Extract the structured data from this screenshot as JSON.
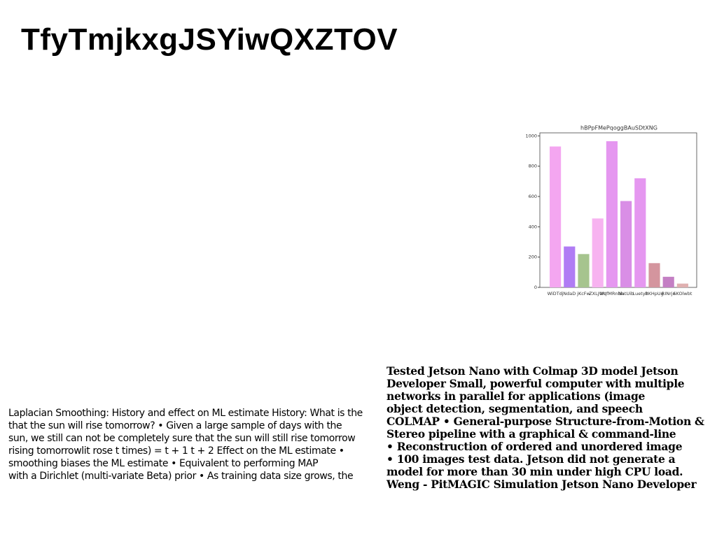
{
  "title": "TfyTmjkxgJSYiwQXZTOV",
  "chart_data": {
    "type": "bar",
    "title": "hBPpFMePqoggBAuSDtXNG",
    "categories": [
      "WiDTdj",
      "NdaD",
      "jKcFw",
      "ZXLJWq",
      "VUfMRnbh",
      "NatUib",
      "Luetyz",
      "BKHpUg",
      "RINrje",
      "SKOlwbt"
    ],
    "values": [
      930,
      270,
      220,
      455,
      965,
      570,
      720,
      160,
      70,
      25
    ],
    "colors": [
      "#f4a6f0",
      "#b07cf4",
      "#a6c48e",
      "#f7b3f0",
      "#e597f0",
      "#d98ee6",
      "#e597f0",
      "#d4959e",
      "#c47fc4",
      "#e0b0b0"
    ],
    "ylim": [
      0,
      1020
    ],
    "yticks": [
      0,
      200,
      400,
      600,
      800,
      1000
    ]
  },
  "left_text": [
    "Laplacian Smoothing: History and effect on ML estimate History: What is the",
    "that the sun will rise tomorrow? • Given a large sample of days with the",
    "sun, we still can not be completely sure that the sun will still rise tomorrow",
    "rising tomorrowlit rose t times) = t + 1 t + 2 Effect on the ML estimate •",
    "smoothing biases the ML estimate • Equivalent to performing MAP",
    "with a Dirichlet (multi-variate Beta) prior • As training data size grows, the"
  ],
  "right_text": [
    "Tested Jetson Nano with Colmap 3D model Jetson",
    "Developer Small, powerful computer with multiple",
    "networks in parallel for applications (image",
    "object detection, segmentation, and speech",
    "COLMAP • General-purpose Structure-from-Motion &",
    "Stereo pipeline with a graphical & command-line",
    "• Reconstruction of ordered and unordered image",
    "• 100 images test data. Jetson did not generate a",
    "model for more than 30 min under high CPU load.",
    "Weng - PitMAGIC Simulation Jetson Nano Developer"
  ]
}
